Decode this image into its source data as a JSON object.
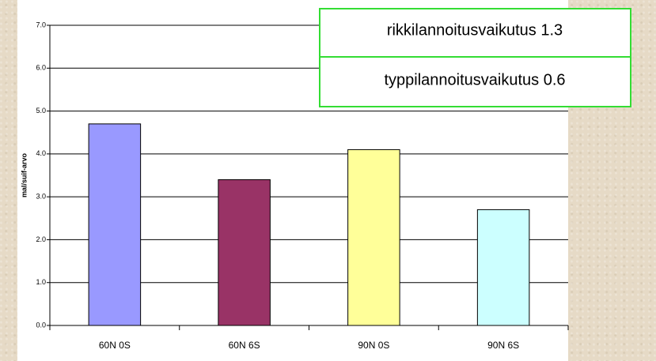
{
  "chart_data": {
    "type": "bar",
    "y_label": "mal/suif-arvo",
    "categories": [
      "60N 0S",
      "60N 6S",
      "90N 0S",
      "90N 6S"
    ],
    "values": [
      4.7,
      3.4,
      4.1,
      2.7
    ],
    "colors": [
      "#9999ff",
      "#993366",
      "#ffff99",
      "#ccffff"
    ],
    "ylim": [
      0,
      7
    ],
    "yticks": [
      {
        "value": 0,
        "label": "0.0"
      },
      {
        "value": 1,
        "label": "1.0"
      },
      {
        "value": 2,
        "label": "2.0"
      },
      {
        "value": 3,
        "label": "3.0"
      },
      {
        "value": 4,
        "label": "4.0"
      },
      {
        "value": 5,
        "label": "5.0"
      },
      {
        "value": 6,
        "label": "6.0"
      },
      {
        "value": 7,
        "label": "7.0"
      }
    ],
    "grid": true,
    "annotations": [
      "rikkilannoitusvaikutus 1.3",
      "typpilannoitusvaikutus 0.6"
    ]
  }
}
